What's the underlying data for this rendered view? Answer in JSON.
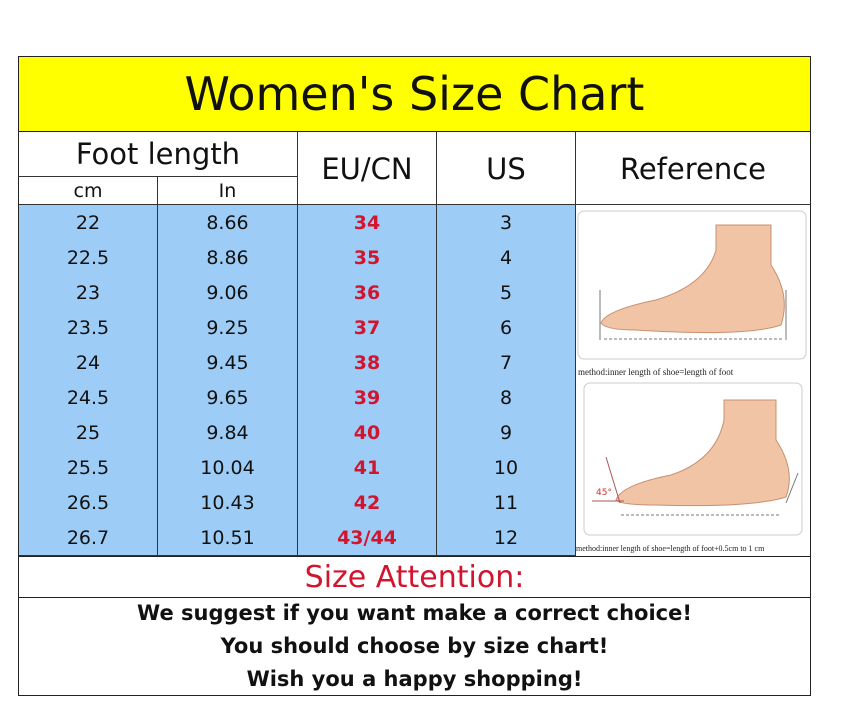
{
  "title": "Women's Size Chart",
  "headers": {
    "foot_length": "Foot length",
    "cm": "cm",
    "in": "In",
    "eu": "EU/CN",
    "us": "US",
    "reference": "Reference"
  },
  "rows": [
    {
      "cm": "22",
      "in": "8.66",
      "eu": "34",
      "us": "3"
    },
    {
      "cm": "22.5",
      "in": "8.86",
      "eu": "35",
      "us": "4"
    },
    {
      "cm": "23",
      "in": "9.06",
      "eu": "36",
      "us": "5"
    },
    {
      "cm": "23.5",
      "in": "9.25",
      "eu": "37",
      "us": "6"
    },
    {
      "cm": "24",
      "in": "9.45",
      "eu": "38",
      "us": "7"
    },
    {
      "cm": "24.5",
      "in": "9.65",
      "eu": "39",
      "us": "8"
    },
    {
      "cm": "25",
      "in": "9.84",
      "eu": "40",
      "us": "9"
    },
    {
      "cm": "25.5",
      "in": "10.04",
      "eu": "41",
      "us": "10"
    },
    {
      "cm": "26.5",
      "in": "10.43",
      "eu": "42",
      "us": "11"
    },
    {
      "cm": "26.7",
      "in": "10.51",
      "eu": "43/44",
      "us": "12"
    }
  ],
  "reference": {
    "caption1": "method:inner length of shoe=length of foot",
    "caption2": "method:inner length of shoe=length of foot+0.5cm to 1 cm",
    "angle": "45°"
  },
  "attention": "Size Attention:",
  "suggestions": [
    "We suggest if you want make a correct choice!",
    "You should choose by size chart!",
    "Wish you a happy shopping!"
  ],
  "colors": {
    "title_bg": "#ffff00",
    "row_bg": "#9dcdf7",
    "eu_text": "#d2152f"
  }
}
